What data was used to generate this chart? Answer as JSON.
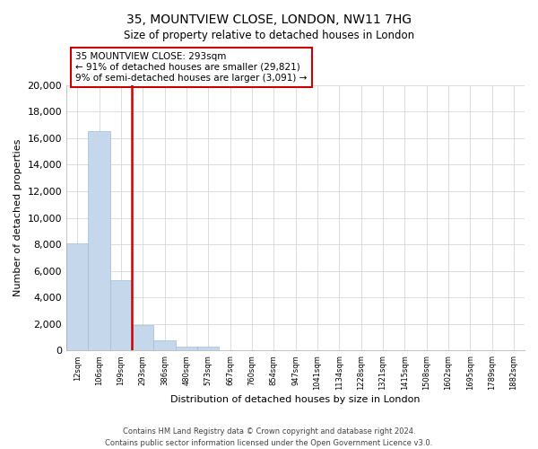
{
  "title_line1": "35, MOUNTVIEW CLOSE, LONDON, NW11 7HG",
  "title_line2": "Size of property relative to detached houses in London",
  "xlabel": "Distribution of detached houses by size in London",
  "ylabel": "Number of detached properties",
  "bar_values": [
    8100,
    16500,
    5300,
    1900,
    800,
    300,
    270,
    0,
    0,
    0,
    0,
    0,
    0,
    0,
    0,
    0,
    0,
    0,
    0,
    0
  ],
  "bin_labels": [
    "12sqm",
    "106sqm",
    "199sqm",
    "293sqm",
    "386sqm",
    "480sqm",
    "573sqm",
    "667sqm",
    "760sqm",
    "854sqm",
    "947sqm",
    "1041sqm",
    "1134sqm",
    "1228sqm",
    "1321sqm",
    "1415sqm",
    "1508sqm",
    "1602sqm",
    "1695sqm",
    "1789sqm",
    "1882sqm"
  ],
  "property_line_index": 3,
  "annotation_title": "35 MOUNTVIEW CLOSE: 293sqm",
  "annotation_line1": "← 91% of detached houses are smaller (29,821)",
  "annotation_line2": "9% of semi-detached houses are larger (3,091) →",
  "bar_color": "#c5d8eb",
  "bar_edge_color": "#a0bcd6",
  "line_color": "#cc0000",
  "annotation_box_edge_color": "#cc0000",
  "ylim": [
    0,
    20000
  ],
  "yticks": [
    0,
    2000,
    4000,
    6000,
    8000,
    10000,
    12000,
    14000,
    16000,
    18000,
    20000
  ],
  "footer_line1": "Contains HM Land Registry data © Crown copyright and database right 2024.",
  "footer_line2": "Contains public sector information licensed under the Open Government Licence v3.0.",
  "background_color": "#ffffff",
  "grid_color": "#d0d8e0"
}
